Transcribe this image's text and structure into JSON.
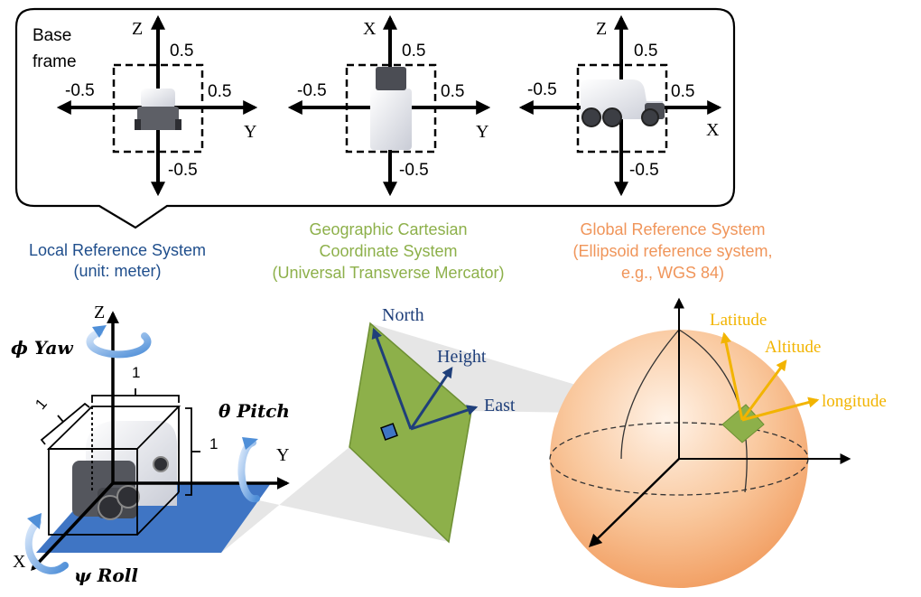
{
  "colors": {
    "local": "#1f4e8c",
    "geo": "#8db04a",
    "global": "#f0955a",
    "gold": "#f2b400",
    "navy": "#1f3f7a",
    "blue_plate": "#3f75c4",
    "green_plane": "#8db04a"
  },
  "base_frame": {
    "label_line1": "Base",
    "label_line2": "frame",
    "views": [
      {
        "vertical_axis": "Z",
        "horizontal_axis": "Y",
        "top_value": "0.5",
        "left_value": "-0.5",
        "right_value": "0.5",
        "bottom_value": "-0.5"
      },
      {
        "vertical_axis": "X",
        "horizontal_axis": "Y",
        "top_value": "0.5",
        "left_value": "-0.5",
        "right_value": "0.5",
        "bottom_value": "-0.5"
      },
      {
        "vertical_axis": "Z",
        "horizontal_axis": "X",
        "top_value": "0.5",
        "left_value": "-0.5",
        "right_value": "0.5",
        "bottom_value": "-0.5"
      }
    ]
  },
  "systems": {
    "local": {
      "line1": "Local Reference System",
      "line2": "(unit: meter)"
    },
    "geo": {
      "line1": "Geographic Cartesian",
      "line2": "Coordinate System",
      "line3": "(Universal Transverse Mercator)"
    },
    "global": {
      "line1": "Global Reference System",
      "line2": "(Ellipsoid reference system,",
      "line3": "e.g., WGS 84)"
    }
  },
  "local_frame": {
    "z_label": "Z",
    "y_label": "Y",
    "x_label": "X",
    "yaw": "ϕ Yaw",
    "pitch": "θ Pitch",
    "roll": "ψ Roll",
    "dim_top": "1",
    "dim_side": "1",
    "dim_left": "1"
  },
  "geo_frame": {
    "north": "North",
    "height": "Height",
    "east": "East"
  },
  "global_frame": {
    "latitude": "Latitude",
    "altitude": "Altitude",
    "longitude": "longitude"
  }
}
